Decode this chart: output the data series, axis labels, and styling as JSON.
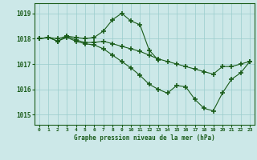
{
  "title": "Graphe pression niveau de la mer (hPa)",
  "bg_color": "#cce8e8",
  "grid_color": "#99cccc",
  "line_color": "#1a5c1a",
  "marker": "+",
  "markersize": 4,
  "markeredgewidth": 1.2,
  "linewidth": 0.8,
  "xlim": [
    -0.5,
    23.5
  ],
  "ylim": [
    1014.6,
    1019.4
  ],
  "yticks": [
    1015,
    1016,
    1017,
    1018,
    1019
  ],
  "xticks": [
    0,
    1,
    2,
    3,
    4,
    5,
    6,
    7,
    8,
    9,
    10,
    11,
    12,
    13,
    14,
    15,
    16,
    17,
    18,
    19,
    20,
    21,
    22,
    23
  ],
  "series": [
    {
      "x": [
        0,
        1,
        2,
        3,
        4,
        5,
        6,
        7,
        8,
        9,
        10,
        11,
        12,
        13,
        14,
        15,
        16,
        17,
        18,
        19,
        20,
        21,
        22,
        23
      ],
      "y": [
        1018.0,
        1018.05,
        1018.0,
        1018.1,
        1018.05,
        1018.0,
        1018.05,
        1018.3,
        1018.75,
        1019.0,
        1018.7,
        1018.55,
        1017.55,
        1017.15,
        null,
        null,
        null,
        null,
        null,
        null,
        null,
        null,
        null,
        null
      ]
    },
    {
      "x": [
        0,
        1,
        2,
        3,
        4,
        5,
        6,
        7,
        8,
        9,
        10,
        11,
        12,
        13,
        14,
        15,
        16,
        17,
        18,
        19,
        20,
        21,
        22,
        23
      ],
      "y": [
        1018.0,
        1018.05,
        1017.9,
        1018.1,
        1017.95,
        1017.85,
        1017.85,
        1017.9,
        1017.8,
        1017.7,
        1017.6,
        1017.5,
        1017.35,
        1017.2,
        1017.1,
        1017.0,
        1016.9,
        1016.8,
        1016.7,
        1016.6,
        1016.9,
        1016.9,
        1017.0,
        1017.1
      ]
    },
    {
      "x": [
        0,
        1,
        2,
        3,
        4,
        5,
        6,
        7,
        8,
        9,
        10,
        11,
        12,
        13,
        14,
        15,
        16,
        17,
        18,
        19,
        20,
        21,
        22,
        23
      ],
      "y": [
        1018.0,
        1018.05,
        1017.9,
        1018.05,
        1017.9,
        1017.8,
        1017.75,
        1017.6,
        1017.35,
        1017.1,
        1016.85,
        1016.55,
        1016.2,
        1016.0,
        1015.85,
        1016.15,
        1016.1,
        1015.6,
        1015.25,
        1015.15,
        1015.85,
        1016.4,
        1016.65,
        1017.1
      ]
    }
  ]
}
